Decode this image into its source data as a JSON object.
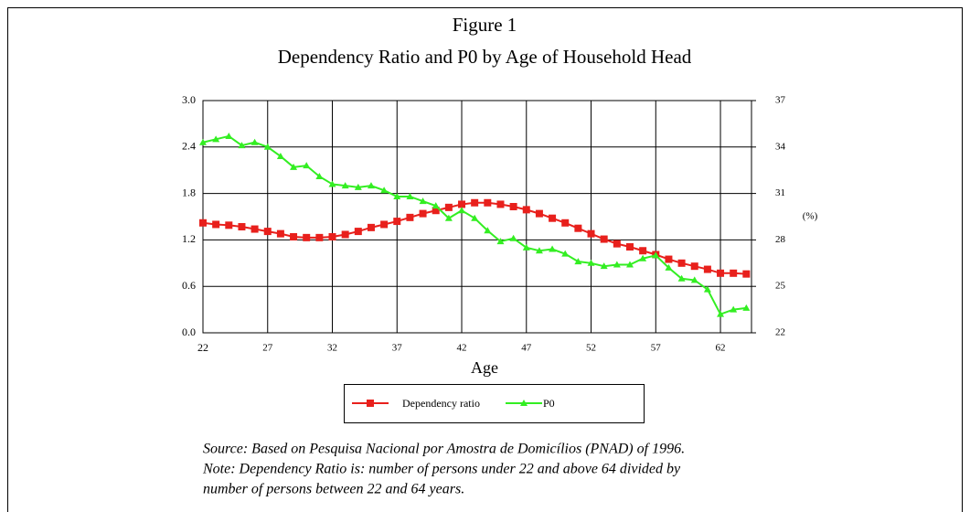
{
  "chart_data": {
    "type": "line",
    "title": "Figure 1",
    "subtitle": "Dependency Ratio and P0 by Age of Household Head",
    "x_label": "Age",
    "y2_label": "(%)",
    "x": [
      22,
      23,
      24,
      25,
      26,
      27,
      28,
      29,
      30,
      31,
      32,
      33,
      34,
      35,
      36,
      37,
      38,
      39,
      40,
      41,
      42,
      43,
      44,
      45,
      46,
      47,
      48,
      49,
      50,
      51,
      52,
      53,
      54,
      55,
      56,
      57,
      58,
      59,
      60,
      61,
      62,
      63,
      64
    ],
    "xlim": [
      22,
      64.4
    ],
    "xticks": [
      22,
      27,
      32,
      37,
      42,
      47,
      52,
      57,
      62
    ],
    "ylim": [
      0,
      3
    ],
    "yticks": [
      {
        "value": 0,
        "label": "0.0"
      },
      0.6,
      1.2,
      1.8,
      2.4,
      {
        "value": 3,
        "label": "3.0"
      }
    ],
    "y2lim": [
      22,
      37
    ],
    "y2ticks": [
      22,
      25,
      28,
      31,
      34,
      37
    ],
    "grid": true,
    "series": [
      {
        "name": "Dependency ratio",
        "color": "#e8201c",
        "marker": "square",
        "values": [
          1.42,
          1.4,
          1.39,
          1.37,
          1.34,
          1.31,
          1.28,
          1.24,
          1.23,
          1.23,
          1.24,
          1.27,
          1.31,
          1.36,
          1.4,
          1.44,
          1.49,
          1.54,
          1.58,
          1.62,
          1.66,
          1.68,
          1.68,
          1.66,
          1.63,
          1.59,
          1.54,
          1.48,
          1.42,
          1.35,
          1.28,
          1.21,
          1.15,
          1.11,
          1.06,
          1.01,
          0.95,
          0.9,
          0.86,
          0.82,
          0.77,
          0.77,
          0.76
        ]
      },
      {
        "name": "P0",
        "color": "#33ee22",
        "marker": "triangle",
        "axis": "y2",
        "values": [
          34.3,
          34.5,
          34.7,
          34.1,
          34.3,
          34.0,
          33.4,
          32.7,
          32.8,
          32.1,
          31.6,
          31.5,
          31.4,
          31.5,
          31.2,
          30.8,
          30.8,
          30.5,
          30.2,
          29.4,
          29.9,
          29.4,
          28.6,
          27.9,
          28.1,
          27.5,
          27.3,
          27.4,
          27.1,
          26.6,
          26.5,
          26.3,
          26.4,
          26.4,
          26.8,
          27.0,
          26.2,
          25.5,
          25.4,
          24.8,
          23.2,
          23.5,
          23.6
        ]
      }
    ],
    "notes": [
      "Source: Based on Pesquisa Nacional por Amostra de Domicílios (PNAD) of 1996.",
      "Note: Dependency Ratio is: number of persons under 22 and above 64 divided by",
      "number of persons between 22 and 64 years."
    ]
  }
}
